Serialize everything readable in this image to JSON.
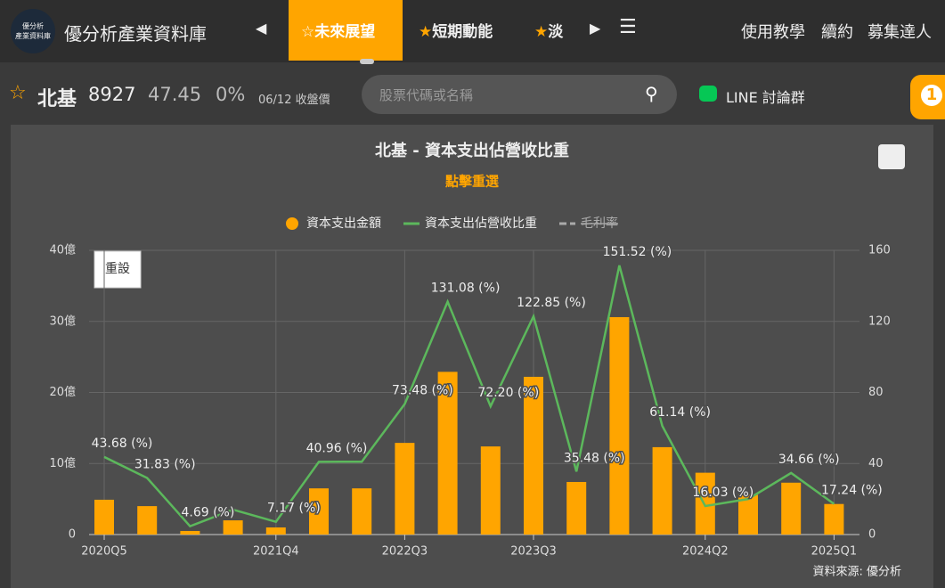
{
  "header": {
    "logo_lines": [
      "優分析",
      "產業資料庫"
    ],
    "site_name": "優分析產業資料庫",
    "tabs": [
      "未來展望",
      "短期動能",
      "淡"
    ],
    "links": [
      "使用教學",
      "續約",
      "募集達人"
    ]
  },
  "stock": {
    "name": "北基",
    "code": "8927",
    "price": "47.45",
    "change": "0%",
    "date_note": "06/12 收盤價"
  },
  "search_placeholder": "股票代碼或名稱",
  "line_group": "LINE 討論群",
  "badge": "1",
  "chart_data": {
    "type": "bar-line",
    "title": "北基 - 資本支出佔營收比重",
    "subtitle": "點擊重選",
    "reset_button": "重設",
    "source": "資料來源: 優分析",
    "categories": [
      "2020Q5",
      null,
      null,
      null,
      "2021Q4",
      null,
      null,
      "2022Q3",
      null,
      null,
      "2023Q3",
      null,
      null,
      null,
      "2024Q2",
      null,
      null,
      "2025Q1"
    ],
    "series": [
      {
        "name": "資本支出金額",
        "color": "#ffa500",
        "values": [
          4.9,
          4.0,
          0.5,
          2.0,
          1.0,
          6.5,
          6.5,
          12.9,
          22.9,
          12.4,
          22.2,
          7.4,
          30.6,
          12.3,
          8.7,
          5.6,
          7.3,
          4.3
        ]
      },
      {
        "name": "資本支出佔營收比重",
        "color": "#5cb85c",
        "axis": "y2",
        "values": [
          43.68,
          31.83,
          4.69,
          14,
          7.17,
          40.96,
          41,
          73.48,
          131.08,
          72.2,
          122.85,
          35.48,
          151.52,
          61.14,
          16.03,
          20,
          34.66,
          17.24
        ],
        "value_labels": [
          "43.68 (%)",
          "31.83 (%)",
          "4.69 (%)",
          null,
          "7.17 (%)",
          "40.96 (%)",
          null,
          "73.48 (%)",
          "131.08 (%)",
          "72.20 (%)",
          "122.85 (%)",
          "35.48 (%)",
          "151.52 (%)",
          "61.14 (%)",
          "16.03 (%)",
          null,
          "34.66 (%)",
          "17.24 (%)"
        ]
      }
    ],
    "legend_hidden": [
      "毛利率"
    ],
    "ylim": [
      0,
      40
    ],
    "yticks": [
      0,
      {
        "value": 10,
        "label": "10億"
      },
      {
        "value": 20,
        "label": "20億"
      },
      {
        "value": 30,
        "label": "30億"
      },
      {
        "value": 40,
        "label": "40億"
      }
    ],
    "y2lim": [
      0,
      160
    ],
    "y2ticks": [
      0,
      40,
      80,
      120,
      160
    ],
    "grid": true
  }
}
